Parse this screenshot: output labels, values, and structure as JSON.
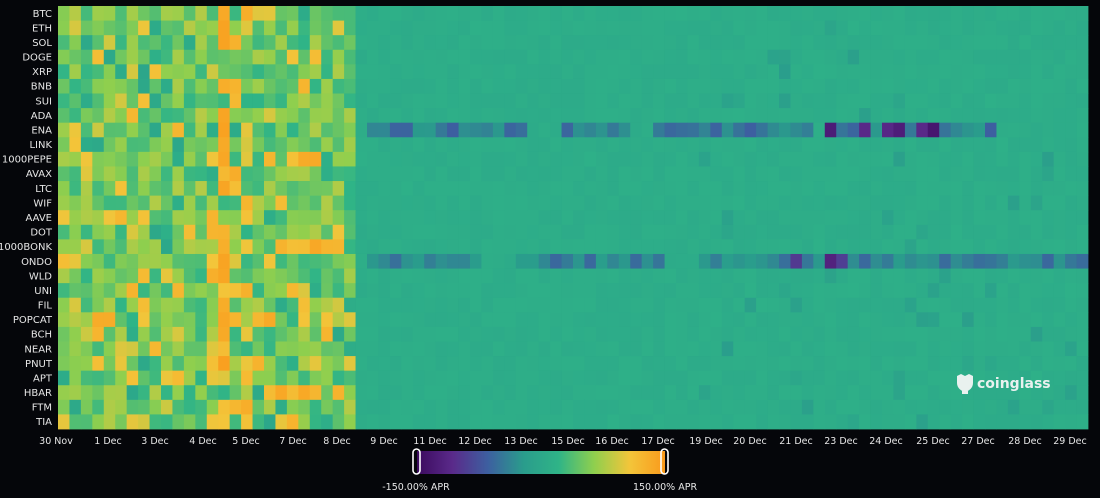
{
  "chart_data": {
    "type": "heatmap",
    "title": "",
    "brand": "coinglass",
    "rows": [
      "BTC",
      "ETH",
      "SOL",
      "DOGE",
      "XRP",
      "BNB",
      "SUI",
      "ADA",
      "ENA",
      "LINK",
      "1000PEPE",
      "AVAX",
      "LTC",
      "WIF",
      "AAVE",
      "DOT",
      "1000BONK",
      "ONDO",
      "WLD",
      "UNI",
      "FIL",
      "POPCAT",
      "BCH",
      "NEAR",
      "PNUT",
      "APT",
      "HBAR",
      "FTM",
      "TIA"
    ],
    "x_tick_labels": [
      "30 Nov",
      "1 Dec",
      "3 Dec",
      "4 Dec",
      "5 Dec",
      "7 Dec",
      "8 Dec",
      "9 Dec",
      "11 Dec",
      "12 Dec",
      "13 Dec",
      "15 Dec",
      "16 Dec",
      "17 Dec",
      "19 Dec",
      "20 Dec",
      "21 Dec",
      "23 Dec",
      "24 Dec",
      "25 Dec",
      "27 Dec",
      "28 Dec",
      "29 Dec"
    ],
    "x_range": [
      "30 Nov",
      "29 Dec"
    ],
    "color_scale": {
      "min": -150,
      "max": 150,
      "min_label": "-150.00% APR",
      "max_label": "150.00% APR",
      "stops": [
        "#3b0a5e",
        "#5a2a8a",
        "#3d5fa0",
        "#2a9c8c",
        "#2fb487",
        "#8fcf4e",
        "#f3c53a",
        "#fa9a1c"
      ]
    }
  }
}
